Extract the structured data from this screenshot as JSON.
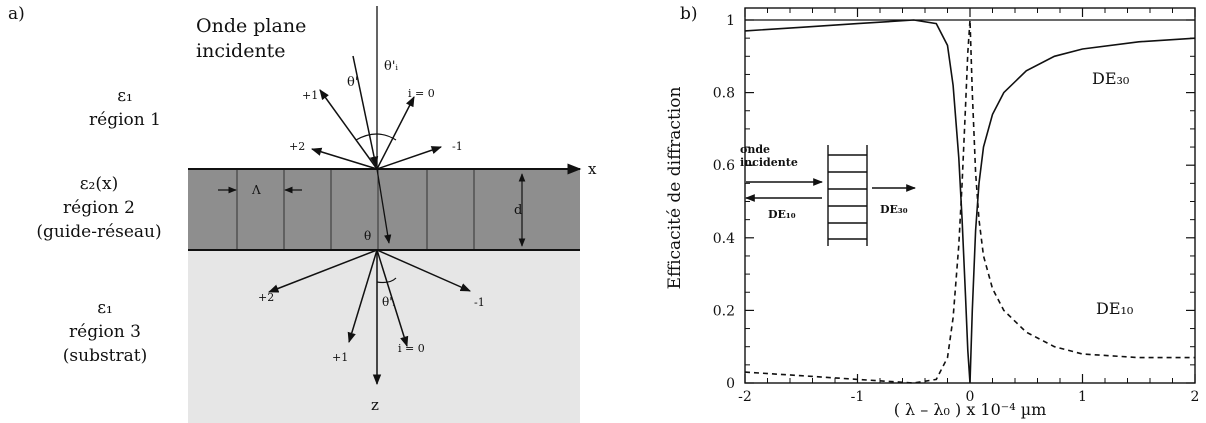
{
  "panel_a": {
    "label": "a)",
    "incident_title_line1": "Onde plane",
    "incident_title_line2": "incidente",
    "region1": {
      "eps": "ε₁",
      "name": "région 1"
    },
    "region2": {
      "eps": "ε₂(x)",
      "name": "région 2",
      "extra": "(guide-réseau)"
    },
    "region3": {
      "eps": "ε₁",
      "name": "région 3",
      "extra": "(substrat)"
    },
    "axis_x": "x",
    "axis_z": "z",
    "period": "Λ",
    "thickness": "d",
    "angle_theta": "θ'",
    "angle_theta_i": "θ'ᵢ",
    "angle_theta_inside": "θ",
    "order_up_p1": "+1",
    "order_up_p2": "+2",
    "order_up_m1": "-1",
    "order_up_i0": "i = 0",
    "order_dn_p2": "+2",
    "order_dn_p1": "+1",
    "order_dn_m1": "-1",
    "order_dn_i0": "i = 0",
    "angle_dn": "θ'ᵢ"
  },
  "panel_b": {
    "label": "b)",
    "inset_text_line1": "onde",
    "inset_text_line2": "incidente",
    "inset_de10": "DE₁₀",
    "inset_de30": "DE₃₀",
    "curve_label_de30": "DE₃₀",
    "curve_label_de10": "DE₁₀"
  },
  "chart_data": {
    "type": "line",
    "xlabel": "( λ – λ₀ ) x 10⁻⁴ µm",
    "ylabel": "Efficacité de diffraction",
    "xlim": [
      -2,
      2
    ],
    "ylim": [
      0,
      1.05
    ],
    "x_ticks": [
      "-2",
      "-1",
      "0",
      "1",
      "2"
    ],
    "y_ticks": [
      "0",
      "0.2",
      "0.4",
      "0.6",
      "0.8",
      "1"
    ],
    "series": [
      {
        "name": "DE₃₀",
        "style": "solid",
        "x": [
          -2,
          -1.5,
          -1,
          -0.5,
          -0.3,
          -0.2,
          -0.15,
          -0.1,
          -0.07,
          -0.04,
          -0.02,
          0,
          0.02,
          0.05,
          0.08,
          0.12,
          0.2,
          0.3,
          0.5,
          0.75,
          1,
          1.5,
          2
        ],
        "y": [
          0.97,
          0.98,
          0.99,
          1.0,
          0.99,
          0.93,
          0.82,
          0.62,
          0.45,
          0.24,
          0.09,
          0.0,
          0.2,
          0.42,
          0.55,
          0.65,
          0.74,
          0.8,
          0.86,
          0.9,
          0.92,
          0.94,
          0.95
        ]
      },
      {
        "name": "DE₁₀",
        "style": "dashed",
        "x": [
          -2,
          -1.5,
          -1,
          -0.5,
          -0.3,
          -0.2,
          -0.15,
          -0.1,
          -0.07,
          -0.04,
          -0.02,
          0,
          0.02,
          0.05,
          0.08,
          0.12,
          0.2,
          0.3,
          0.5,
          0.75,
          1,
          1.5,
          2
        ],
        "y": [
          0.03,
          0.02,
          0.01,
          0.0,
          0.01,
          0.07,
          0.18,
          0.38,
          0.55,
          0.76,
          0.91,
          1.0,
          0.8,
          0.58,
          0.45,
          0.35,
          0.26,
          0.2,
          0.14,
          0.1,
          0.08,
          0.07,
          0.07
        ]
      },
      {
        "name": "",
        "style": "solid",
        "x": [
          -2,
          2
        ],
        "y": [
          1.0,
          1.0
        ]
      }
    ]
  }
}
